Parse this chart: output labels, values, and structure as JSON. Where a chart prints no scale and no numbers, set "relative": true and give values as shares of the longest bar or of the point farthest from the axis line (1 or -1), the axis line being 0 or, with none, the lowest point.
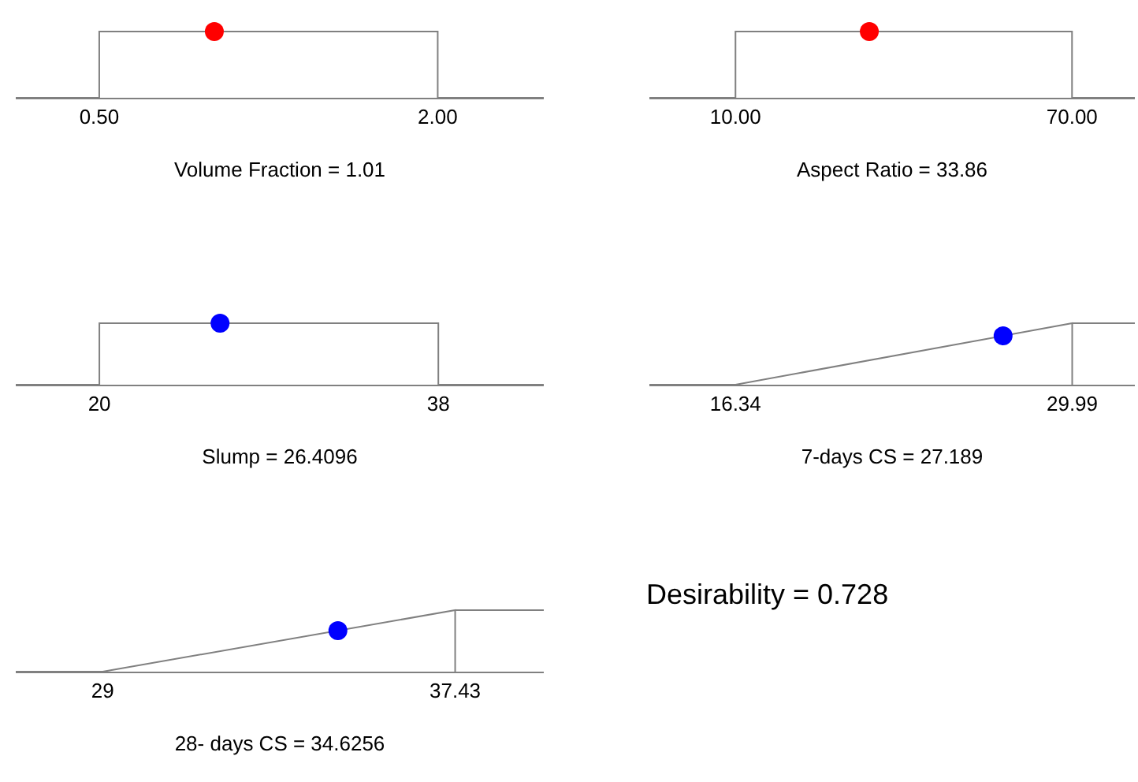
{
  "chart_data": [
    {
      "type": "line",
      "relative": true,
      "xlabel": "Volume Fraction = 1.01",
      "xlim": [
        0.13,
        2.47
      ],
      "xticks": [
        {
          "value": 0.5,
          "label": "0.50"
        },
        {
          "value": 2.0,
          "label": "2.00"
        }
      ],
      "series": [
        {
          "type": "line",
          "color": "#808080",
          "x": [
            0.13,
            0.5,
            0.5,
            2.0,
            2.0,
            2.47
          ],
          "values": [
            0,
            0,
            1,
            1,
            0,
            0
          ]
        },
        {
          "type": "scatter",
          "color": "#ff0000",
          "marker": "circle",
          "x": [
            1.01
          ],
          "values": [
            1
          ]
        }
      ]
    },
    {
      "type": "line",
      "relative": true,
      "xlabel": "Aspect Ratio = 33.86",
      "xlim": [
        -5.35,
        81.2
      ],
      "xticks": [
        {
          "value": 10,
          "label": "10.00"
        },
        {
          "value": 70,
          "label": "70.00"
        }
      ],
      "series": [
        {
          "type": "line",
          "color": "#808080",
          "x": [
            -5.35,
            10,
            10,
            70,
            70,
            81.2
          ],
          "values": [
            0,
            0,
            1,
            1,
            0,
            0
          ]
        },
        {
          "type": "scatter",
          "color": "#ff0000",
          "marker": "circle",
          "x": [
            33.86
          ],
          "values": [
            1
          ]
        }
      ]
    },
    {
      "type": "line",
      "relative": true,
      "xlabel": "Slump = 26.4096",
      "xlim": [
        15.56,
        43.6
      ],
      "xticks": [
        20,
        38
      ],
      "series": [
        {
          "type": "line",
          "color": "#808080",
          "x": [
            15.56,
            20,
            20,
            38,
            38,
            43.6
          ],
          "values": [
            0,
            0,
            1,
            1,
            0,
            0
          ]
        },
        {
          "type": "scatter",
          "color": "#0000ff",
          "marker": "circle",
          "x": [
            26.4096
          ],
          "values": [
            1
          ]
        }
      ]
    },
    {
      "type": "line",
      "relative": true,
      "xlabel": "7-days CS = 27.189",
      "xlim": [
        12.85,
        32.53
      ],
      "xticks": [
        16.34,
        29.99
      ],
      "series": [
        {
          "type": "line",
          "color": "#808080",
          "x": [
            12.85,
            16.34,
            29.99,
            29.99,
            29.99,
            32.53
          ],
          "values": [
            0,
            0,
            1,
            0,
            1,
            1
          ]
        },
        {
          "type": "scatter",
          "color": "#0000ff",
          "marker": "circle",
          "x": [
            27.189
          ],
          "values": [
            0.795
          ]
        }
      ]
    },
    {
      "type": "line",
      "relative": true,
      "xlabel": "28- days CS = 34.6256",
      "xlim": [
        26.92,
        39.55
      ],
      "xticks": [
        29,
        37.43
      ],
      "series": [
        {
          "type": "line",
          "color": "#808080",
          "x": [
            26.92,
            29,
            37.43,
            37.43,
            37.43,
            39.55
          ],
          "values": [
            0,
            0,
            1,
            0,
            1,
            1
          ]
        },
        {
          "type": "scatter",
          "color": "#0000ff",
          "marker": "circle",
          "x": [
            34.6256
          ],
          "values": [
            0.667
          ]
        }
      ]
    },
    {
      "type": "other",
      "title": "Desirability = 0.728"
    }
  ]
}
